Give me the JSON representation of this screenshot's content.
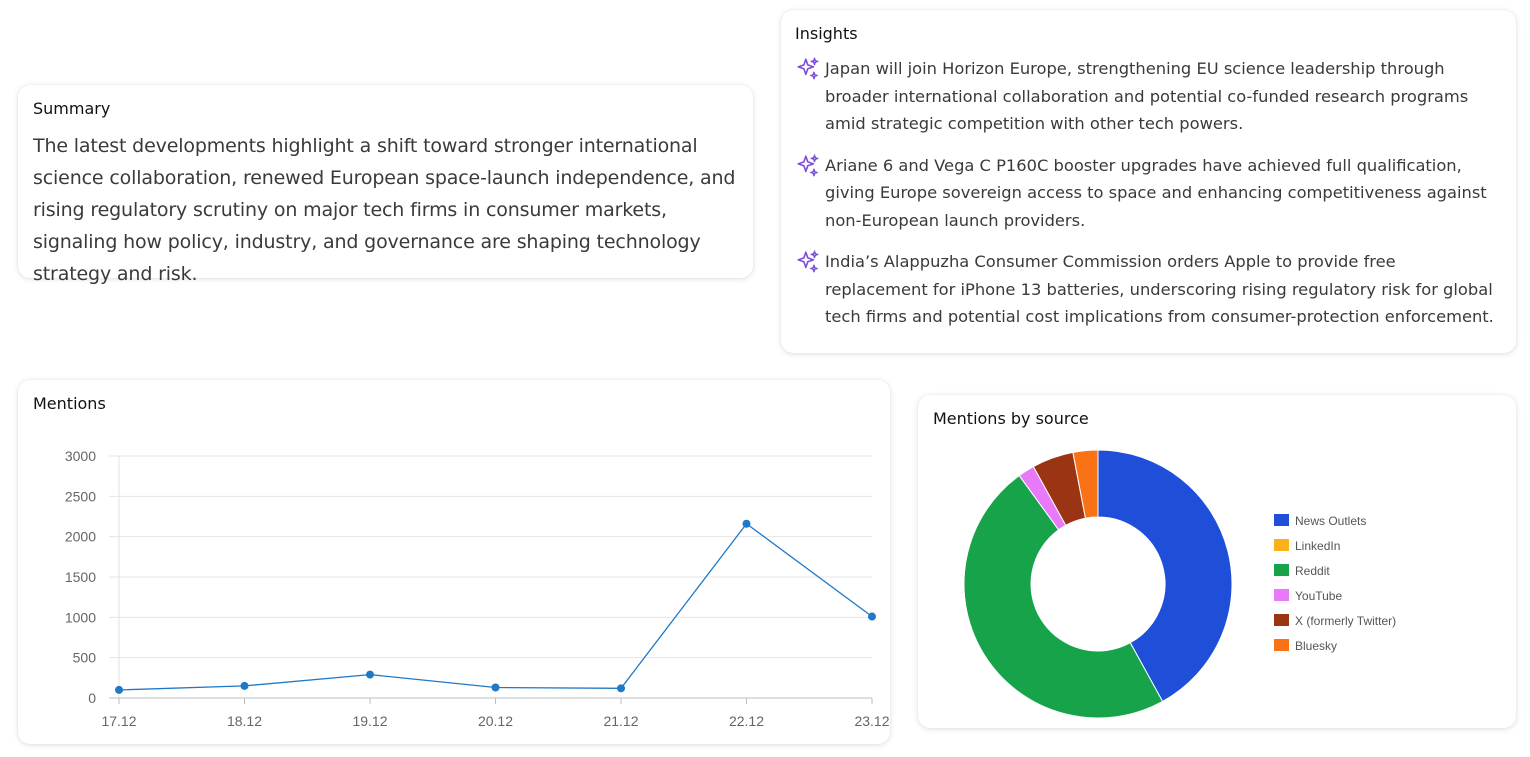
{
  "summary": {
    "title": "Summary",
    "text": "The latest developments highlight a shift toward stronger international science collaboration, renewed European space-launch independence, and rising regulatory scrutiny on major tech firms in consumer markets, signaling how policy, industry, and governance are shaping technology strategy and risk."
  },
  "insights": {
    "title": "Insights",
    "icon": "sparkles-icon",
    "icon_color": "#7c4ddb",
    "items": [
      "Japan will join Horizon Europe, strengthening EU science leadership through broader international collaboration and potential co-funded research programs amid strategic competition with other tech powers.",
      "Ariane 6 and Vega C P160C booster upgrades have achieved full qualification, giving Europe sovereign access to space and enhancing competitiveness against non-European launch providers.",
      "India’s Alappuzha Consumer Commission orders Apple to provide free replacement for iPhone 13 batteries, underscoring rising regulatory risk for global tech firms and potential cost implications from consumer-protection enforcement."
    ]
  },
  "mentions": {
    "title": "Mentions"
  },
  "sources": {
    "title": "Mentions by source"
  },
  "chart_data": [
    {
      "type": "line",
      "title": "Mentions",
      "categories": [
        "17.12",
        "18.12",
        "19.12",
        "20.12",
        "21.12",
        "22.12",
        "23.12"
      ],
      "values": [
        100,
        150,
        290,
        130,
        120,
        2160,
        1010
      ],
      "ylim": [
        0,
        3000
      ],
      "yticks": [
        0,
        500,
        1000,
        1500,
        2000,
        2500,
        3000
      ],
      "xlabel": "",
      "ylabel": "",
      "grid": true,
      "color": "#1f78c8"
    },
    {
      "type": "pie",
      "donut": true,
      "title": "Mentions by source",
      "legend_position": "right",
      "labels": [
        "News Outlets",
        "LinkedIn",
        "Reddit",
        "YouTube",
        "X (formerly Twitter)",
        "Bluesky"
      ],
      "values": [
        42.0,
        0.0,
        48.0,
        2.0,
        5.0,
        3.0
      ],
      "colors": [
        "#1f4ed8",
        "#fbb117",
        "#16a34a",
        "#e879f9",
        "#9a3412",
        "#f97316"
      ]
    }
  ]
}
